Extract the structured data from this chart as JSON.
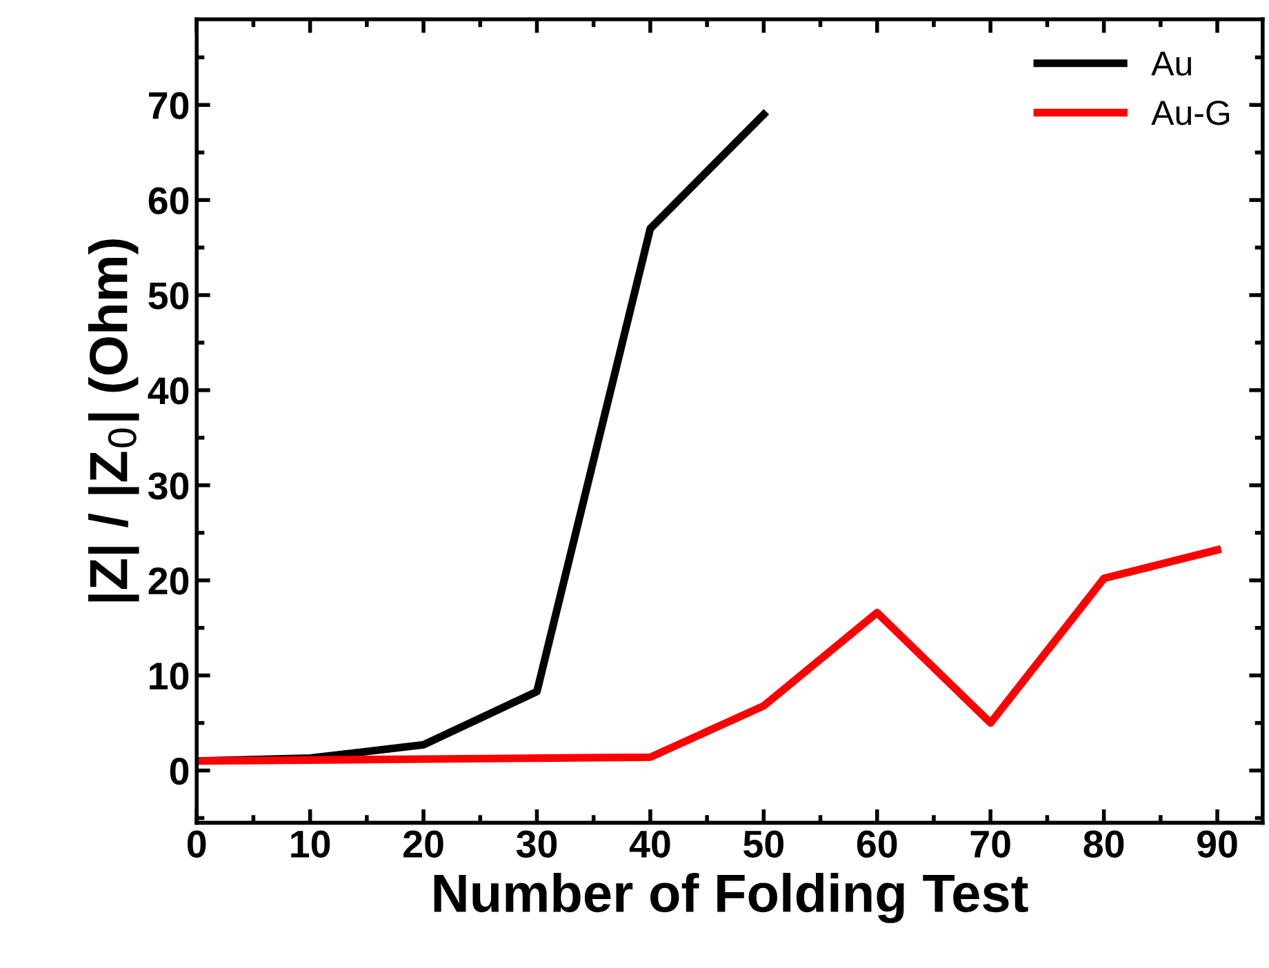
{
  "chart_data": {
    "type": "line",
    "xlabel": "Number of Folding Test",
    "ylabel": "|Z| / |Z$_{0}$| (Ohm)",
    "xlim": [
      0,
      94
    ],
    "xticks": [
      0,
      10,
      20,
      30,
      40,
      50,
      60,
      70,
      80,
      90
    ],
    "ylim": [
      -5.5,
      79
    ],
    "yticks": [
      0,
      10,
      20,
      30,
      40,
      50,
      60,
      70
    ],
    "grid": false,
    "legend": "top right",
    "marker": "none",
    "line_style": "solid",
    "series": [
      {
        "name": "Au",
        "color": "#000000",
        "x": [
          0,
          10,
          20,
          30,
          40,
          50
        ],
        "values": [
          1,
          1.3,
          2.7,
          8.3,
          57,
          69
        ]
      },
      {
        "name": "Au-G",
        "color": "#ff0000",
        "x": [
          0,
          10,
          20,
          30,
          40,
          50,
          60,
          70,
          80,
          90
        ],
        "values": [
          1,
          1.1,
          1.2,
          1.3,
          1.4,
          6.8,
          16.6,
          5,
          20.2,
          23.2
        ]
      }
    ]
  }
}
